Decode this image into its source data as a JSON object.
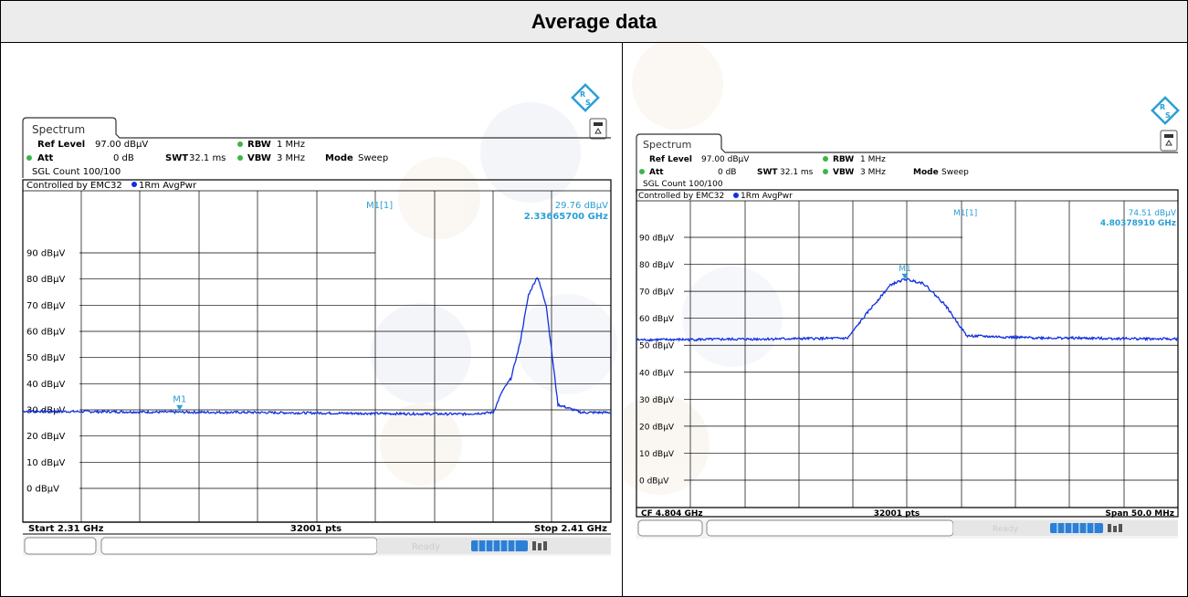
{
  "title": "Average data",
  "panels": [
    {
      "tab": "Spectrum",
      "ref_level_label": "Ref Level",
      "ref_level_value": "97.00 dBµV",
      "att_label": "Att",
      "att_value": "0 dB",
      "swt_label": "SWT",
      "swt_value": "32.1 ms",
      "rbw_label": "RBW",
      "rbw_value": "1 MHz",
      "vbw_label": "VBW",
      "vbw_value": "3 MHz",
      "mode_label": "Mode",
      "mode_value": "Sweep",
      "sgl_count": "SGL Count 100/100",
      "controlled_by": "Controlled by EMC32",
      "trace_label": "1Rm AvgPwr",
      "marker_name": "M1[1]",
      "marker_level": "29.76 dBµV",
      "marker_freq": "2.33665700 GHz",
      "footer_left": "Start 2.31 GHz",
      "footer_mid": "32001 pts",
      "footer_right": "Stop 2.41 GHz",
      "status_text": "Ready"
    },
    {
      "tab": "Spectrum",
      "ref_level_label": "Ref Level",
      "ref_level_value": "97.00 dBµV",
      "att_label": "Att",
      "att_value": "0 dB",
      "swt_label": "SWT",
      "swt_value": "32.1 ms",
      "rbw_label": "RBW",
      "rbw_value": "1 MHz",
      "vbw_label": "VBW",
      "vbw_value": "3 MHz",
      "mode_label": "Mode",
      "mode_value": "Sweep",
      "sgl_count": "SGL Count 100/100",
      "controlled_by": "Controlled by EMC32",
      "trace_label": "1Rm AvgPwr",
      "marker_name": "M1[1]",
      "marker_level": "74.51 dBµV",
      "marker_freq": "4.80378910 GHz",
      "footer_left": "CF 4.804 GHz",
      "footer_mid": "32001 pts",
      "footer_right": "Span 50.0 MHz",
      "status_text": "Ready"
    }
  ],
  "colors": {
    "trace": "#1030e0",
    "marker": "#2a9fd6",
    "grid": "#000000"
  },
  "chart_data": [
    {
      "type": "line",
      "title": "",
      "xlabel": "",
      "ylabel": "",
      "xlim_ghz": [
        2.31,
        2.41
      ],
      "ylim": [
        0,
        97
      ],
      "y_ticks": [
        "90 dBµV",
        "80 dBµV",
        "70 dBµV",
        "60 dBµV",
        "50 dBµV",
        "40 dBµV",
        "30 dBµV",
        "20 dBµV",
        "10 dBµV",
        "0 dBµV"
      ],
      "grid": true,
      "series": [
        {
          "x": [
            2.31,
            2.33,
            2.35,
            2.37,
            2.385,
            2.39,
            2.3915,
            2.393,
            2.3945,
            2.396,
            2.3975,
            2.399,
            2.401,
            2.405,
            2.41
          ],
          "y": [
            29.5,
            29.2,
            29.0,
            28.6,
            28.4,
            29.0,
            37.0,
            42.0,
            55.0,
            74.0,
            81.0,
            70.0,
            32.0,
            29.0,
            29.0
          ]
        }
      ],
      "markers": [
        {
          "name": "M1",
          "x": 2.33666,
          "y": 29.76
        }
      ]
    },
    {
      "type": "line",
      "title": "",
      "xlabel": "",
      "ylabel": "",
      "xlim_ghz": [
        4.779,
        4.829
      ],
      "ylim": [
        0,
        97
      ],
      "y_ticks": [
        "90 dBµV",
        "80 dBµV",
        "70 dBµV",
        "60 dBµV",
        "50 dBµV",
        "40 dBµV",
        "30 dBµV",
        "20 dBµV",
        "10 dBµV",
        "0 dBµV"
      ],
      "grid": true,
      "series": [
        {
          "x": [
            4.779,
            4.79,
            4.7985,
            4.8005,
            4.8025,
            4.8038,
            4.8055,
            4.8075,
            4.8095,
            4.815,
            4.829
          ],
          "y": [
            52.0,
            52.3,
            52.6,
            63.0,
            72.5,
            74.5,
            73.0,
            65.0,
            53.5,
            52.8,
            52.3
          ]
        }
      ],
      "markers": [
        {
          "name": "M1",
          "x": 4.80379,
          "y": 74.51
        }
      ]
    }
  ]
}
